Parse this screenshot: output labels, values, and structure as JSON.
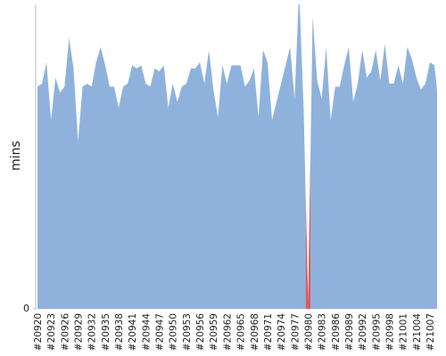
{
  "chart_data": {
    "type": "area",
    "ylabel": "mins",
    "categories": [
      "#20920",
      null,
      null,
      "#20923",
      null,
      null,
      "#20926",
      null,
      null,
      "#20929",
      null,
      null,
      "#20932",
      null,
      null,
      "#20935",
      null,
      null,
      "#20938",
      null,
      null,
      "#20941",
      null,
      null,
      "#20944",
      null,
      null,
      "#20947",
      null,
      null,
      "#20950",
      null,
      null,
      "#20953",
      null,
      null,
      "#20956",
      null,
      null,
      "#20959",
      null,
      null,
      "#20962",
      null,
      null,
      "#20965",
      null,
      null,
      "#20968",
      null,
      null,
      "#20971",
      null,
      null,
      "#20974",
      null,
      null,
      "#20977",
      null,
      null,
      "#20980",
      null,
      null,
      "#20983",
      null,
      null,
      "#20986",
      null,
      null,
      "#20989",
      null,
      null,
      "#20992",
      null,
      null,
      "#20995",
      null,
      null,
      "#20998",
      null,
      null,
      "#21001",
      null,
      null,
      "#21004",
      null,
      null,
      "#21007",
      null,
      null
    ],
    "values": [
      73,
      74,
      81,
      62,
      76,
      71,
      73,
      89,
      79,
      55,
      73,
      74,
      73,
      81,
      86,
      80,
      73,
      73,
      66,
      73,
      74,
      80,
      79,
      80,
      74,
      73,
      79,
      78,
      80,
      66,
      74,
      68,
      73,
      74,
      79,
      79,
      81,
      74,
      85,
      72,
      63,
      80,
      74,
      80,
      80,
      80,
      73,
      75,
      79,
      63,
      85,
      81,
      62,
      68,
      74,
      80,
      86,
      69,
      105,
      66,
      2,
      96,
      75,
      69,
      86,
      62,
      73,
      73,
      80,
      86,
      68,
      74,
      85,
      76,
      78,
      85,
      75,
      87,
      74,
      74,
      80,
      74,
      86,
      82,
      76,
      72,
      74,
      81,
      80,
      66
    ],
    "color": "#8fb2dc",
    "highlight_index": 60,
    "highlight_color": "#e05a5a",
    "ylim": [
      0,
      100
    ],
    "yticks": [
      0
    ]
  }
}
